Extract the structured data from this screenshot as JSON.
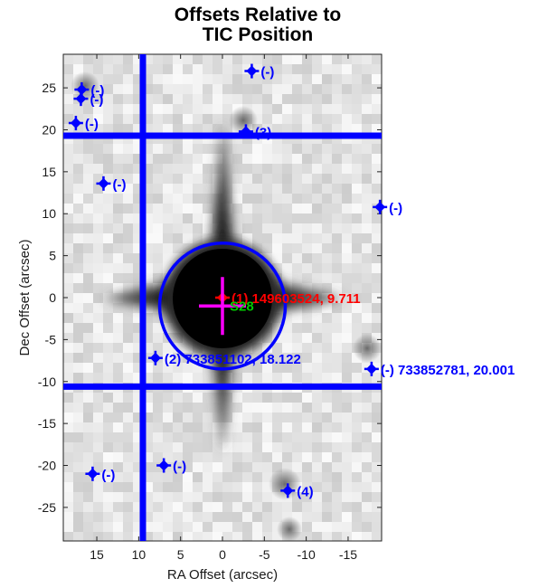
{
  "chart_data": {
    "type": "scatter",
    "title_lines": [
      "Offsets Relative to",
      "TIC Position"
    ],
    "xlabel": "RA Offset (arcsec)",
    "ylabel": "Dec Offset (arcsec)",
    "xlim": [
      19,
      -19
    ],
    "ylim": [
      -29,
      29
    ],
    "xticks": [
      15,
      10,
      5,
      0,
      -5,
      -10,
      -15
    ],
    "yticks": [
      25,
      20,
      15,
      10,
      5,
      0,
      -5,
      -10,
      -15,
      -20,
      -25
    ],
    "x_reversed": true,
    "background": "grayscale TESS difference image",
    "aperture_lines": {
      "ra": 9.5,
      "dec": [
        19.3,
        -10.6
      ]
    },
    "aperture_circle": {
      "center": [
        0.0,
        -1.0
      ],
      "radius": 7.5
    },
    "centroid_marker": {
      "x": 0.0,
      "y": -1.0,
      "label": "S28",
      "color": "#ff00ff",
      "label_color": "#00cc00"
    },
    "target_marker": {
      "x": 0.0,
      "y": 0.0
    },
    "sources": [
      {
        "x": 0.0,
        "y": 0.0,
        "label": "(1) 149603524, 9.711",
        "color": "#ff0000"
      },
      {
        "x": 8.0,
        "y": -7.2,
        "label": "(2) 733851102, 18.122",
        "color": "#0000ff"
      },
      {
        "x": -2.8,
        "y": 19.8,
        "label": "(3)",
        "color": "#0000ff"
      },
      {
        "x": -7.8,
        "y": -23.0,
        "label": "(4)",
        "color": "#0000ff"
      },
      {
        "x": -3.5,
        "y": 27.0,
        "label": "(-)",
        "color": "#0000ff"
      },
      {
        "x": 16.8,
        "y": 24.8,
        "label": "(-)",
        "color": "#0000ff"
      },
      {
        "x": 16.9,
        "y": 23.7,
        "label": "(-)",
        "color": "#0000ff"
      },
      {
        "x": 17.5,
        "y": 20.8,
        "label": "(-)",
        "color": "#0000ff"
      },
      {
        "x": 14.2,
        "y": 13.6,
        "label": "(-)",
        "color": "#0000ff"
      },
      {
        "x": -18.8,
        "y": 10.8,
        "label": "(-)",
        "color": "#0000ff"
      },
      {
        "x": -17.8,
        "y": -8.5,
        "label": "(-) 733852781, 20.001",
        "color": "#0000ff"
      },
      {
        "x": 15.5,
        "y": -21.0,
        "label": "(-)",
        "color": "#0000ff"
      },
      {
        "x": 7.0,
        "y": -20.0,
        "label": "(-)",
        "color": "#0000ff"
      }
    ]
  }
}
